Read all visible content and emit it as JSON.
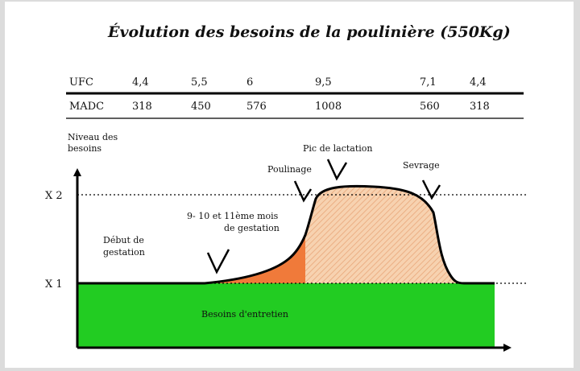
{
  "chart_data": {
    "type": "area",
    "title": "Évolution des besoins de la poulinière (550Kg)",
    "ylabel": [
      "Niveau des",
      "besoins"
    ],
    "y_levels": [
      "X 2",
      "X 1"
    ],
    "table": {
      "rows": [
        {
          "label": "UFC",
          "values": [
            "4,4",
            "5,5",
            "6",
            "9,5",
            "7,1",
            "4,4"
          ]
        },
        {
          "label": "MADC",
          "values": [
            "318",
            "450",
            "576",
            "1008",
            "560",
            "318"
          ]
        }
      ]
    },
    "annotations": [
      {
        "lines": [
          "Début de",
          "gestation"
        ]
      },
      {
        "lines": [
          "9- 10 et 11ème mois",
          "de gestation"
        ]
      },
      {
        "lines": [
          "Poulinage"
        ]
      },
      {
        "lines": [
          "Pic de lactation"
        ]
      },
      {
        "lines": [
          "Sevrage"
        ]
      }
    ],
    "base_label": "Besoins d'entretien",
    "colors": {
      "base": "#22cc22",
      "late_gestation": "#f07a3a",
      "lactation_fill": "#f7d2b0",
      "lactation_hatch": "#e9a77a",
      "curve": "#000000"
    }
  }
}
